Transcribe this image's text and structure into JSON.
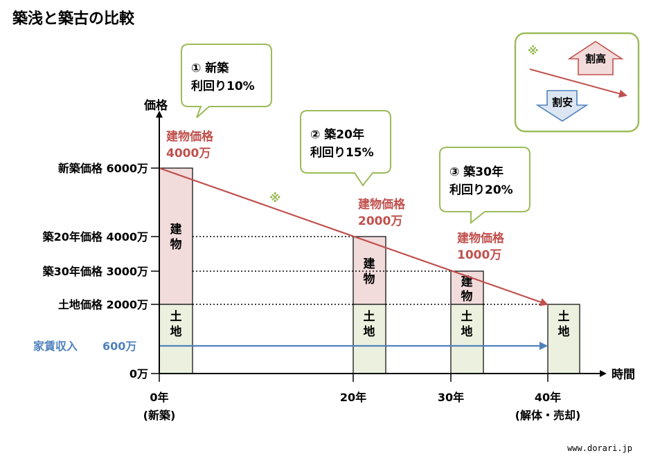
{
  "title": "築浅と築古の比較",
  "axis": {
    "y_label": "価格",
    "x_label": "時間"
  },
  "y_ticks": {
    "new_price": "新築価格 6000万",
    "y20_price": "築20年価格 4000万",
    "y30_price": "築30年価格 3000万",
    "land_price": "土地価格 2000万",
    "zero": "0万"
  },
  "rent": {
    "label": "家賃収入",
    "value": "600万"
  },
  "x_ticks": {
    "y0": "0年",
    "y0_sub": "(新築)",
    "y20": "20年",
    "y30": "30年",
    "y40": "40年",
    "y40_sub": "(解体・売却)"
  },
  "callouts": {
    "c1": {
      "line1": "① 新築",
      "line2": "利回り10%"
    },
    "c2": {
      "line1": "② 築20年",
      "line2": "利回り15%"
    },
    "c3": {
      "line1": "③ 築30年",
      "line2": "利回り20%"
    }
  },
  "building_prices": {
    "b1": {
      "label": "建物価格",
      "value": "4000万"
    },
    "b2": {
      "label": "建物価格",
      "value": "2000万"
    },
    "b3": {
      "label": "建物価格",
      "value": "1000万"
    }
  },
  "bar_labels": {
    "building1": "建",
    "building2": "物",
    "land1": "土",
    "land2": "地"
  },
  "note_mark": "※",
  "legend": {
    "mark": "※",
    "high": "割高",
    "low": "割安"
  },
  "watermark": "www.dorari.jp",
  "colors": {
    "building_fill": "#f2dcdb",
    "land_fill": "#ebf1de",
    "trend_line": "#c0504d",
    "rent_line": "#4f81bd",
    "callout_border": "#9bbb59",
    "up_arrow_fill": "#f2dcdb",
    "up_arrow_stroke": "#c0504d",
    "down_arrow_fill": "#dce6f2",
    "down_arrow_stroke": "#4f81bd"
  }
}
